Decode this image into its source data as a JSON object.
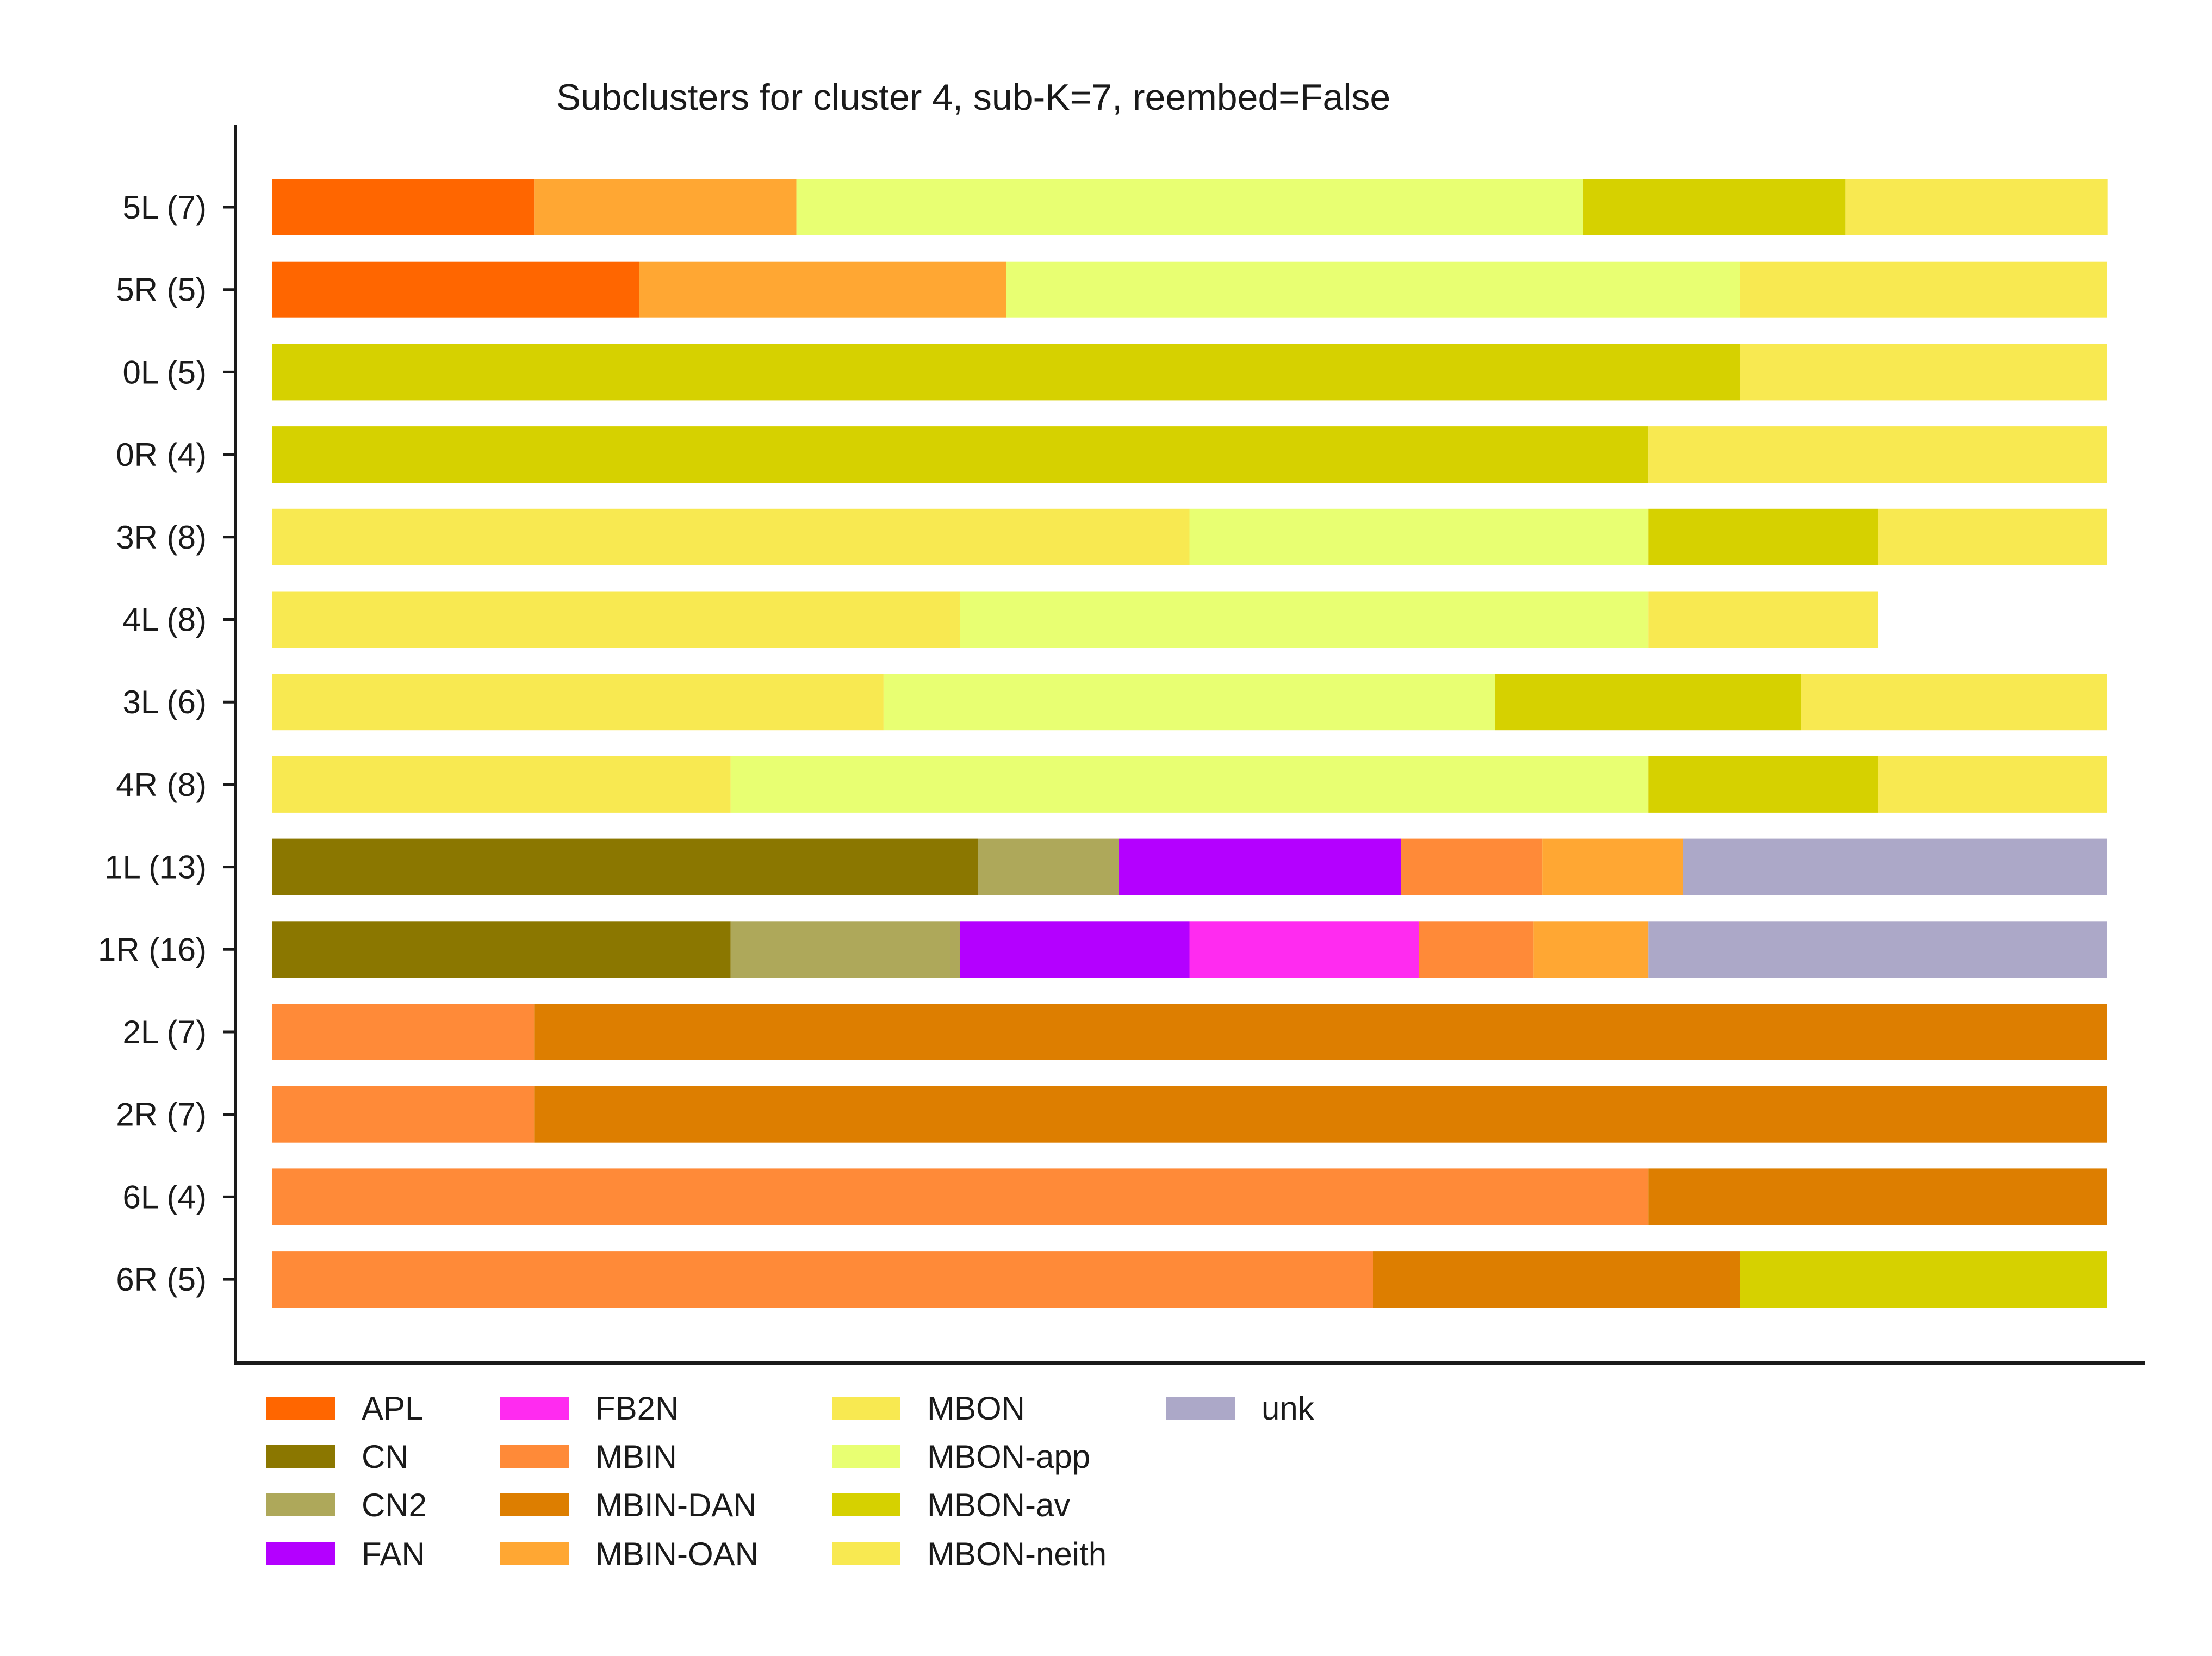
{
  "chart_data": {
    "type": "bar",
    "orientation": "horizontal",
    "stacked": true,
    "normalized": true,
    "title": "Subclusters for cluster 4, sub-K=7, reembed=False",
    "xlabel": "",
    "ylabel": "",
    "grid": false,
    "legend_position": "bottom",
    "categories": [
      "5L (7)",
      "5R (5)",
      "0L (5)",
      "0R (4)",
      "3R (8)",
      "4L (8)",
      "3L (6)",
      "4R (8)",
      "1L (13)",
      "1R (16)",
      "2L (7)",
      "2R (7)",
      "6L (4)",
      "6R (5)"
    ],
    "series": [
      {
        "name": "APL",
        "color": "#ff6600",
        "values": [
          0.1429,
          0.2,
          0,
          0,
          0,
          0,
          0,
          0,
          0,
          0,
          0,
          0,
          0,
          0
        ]
      },
      {
        "name": "CN",
        "color": "#8b7700",
        "values": [
          0,
          0,
          0,
          0,
          0,
          0,
          0,
          0,
          0.3846,
          0.25,
          0,
          0,
          0,
          0
        ]
      },
      {
        "name": "CN2",
        "color": "#aea85a",
        "values": [
          0,
          0,
          0,
          0,
          0,
          0,
          0,
          0,
          0.0769,
          0.125,
          0,
          0,
          0,
          0
        ]
      },
      {
        "name": "FAN",
        "color": "#b400ff",
        "values": [
          0,
          0,
          0,
          0,
          0,
          0,
          0,
          0,
          0.1538,
          0.125,
          0,
          0,
          0,
          0
        ]
      },
      {
        "name": "FB2N",
        "color": "#ff2bf0",
        "values": [
          0,
          0,
          0,
          0,
          0,
          0,
          0,
          0,
          0,
          0.125,
          0,
          0,
          0,
          0
        ]
      },
      {
        "name": "MBIN",
        "color": "#ff8a38",
        "values": [
          0,
          0,
          0,
          0,
          0,
          0,
          0,
          0,
          0.0769,
          0.0625,
          0.1429,
          0.1429,
          0.75,
          0.6
        ]
      },
      {
        "name": "MBIN-DAN",
        "color": "#dd7e00",
        "values": [
          0,
          0,
          0,
          0,
          0,
          0,
          0,
          0,
          0,
          0,
          0.8571,
          0.8571,
          0.25,
          0.2
        ]
      },
      {
        "name": "MBIN-OAN",
        "color": "#ffa733",
        "values": [
          0.1429,
          0.2,
          0,
          0,
          0,
          0,
          0,
          0,
          0.0769,
          0.0625,
          0,
          0,
          0,
          0
        ]
      },
      {
        "name": "MBON",
        "color": "#f8e951",
        "values": [
          0,
          0,
          0,
          0,
          0.5,
          0.375,
          0.3333,
          0.25,
          0,
          0,
          0,
          0,
          0,
          0
        ]
      },
      {
        "name": "MBON-app",
        "color": "#e8ff72",
        "values": [
          0.4286,
          0.4,
          0,
          0,
          0.25,
          0.375,
          0.3333,
          0.5,
          0,
          0,
          0,
          0,
          0,
          0
        ]
      },
      {
        "name": "MBON-av",
        "color": "#d6d100",
        "values": [
          0.1429,
          0,
          0.8,
          0.75,
          0.125,
          0,
          0.1667,
          0.125,
          0,
          0,
          0,
          0,
          0,
          0.2
        ]
      },
      {
        "name": "MBON-neith",
        "color": "#f8e951",
        "values": [
          0.1429,
          0.2,
          0.2,
          0.25,
          0.125,
          0.125,
          0.1667,
          0.125,
          0,
          0,
          0,
          0,
          0,
          0
        ]
      },
      {
        "name": "unk",
        "color": "#aca8c8",
        "values": [
          0,
          0,
          0,
          0,
          0,
          0,
          0,
          0,
          0.2308,
          0.25,
          0,
          0,
          0,
          0
        ]
      }
    ],
    "xlim": [
      0,
      1
    ]
  }
}
